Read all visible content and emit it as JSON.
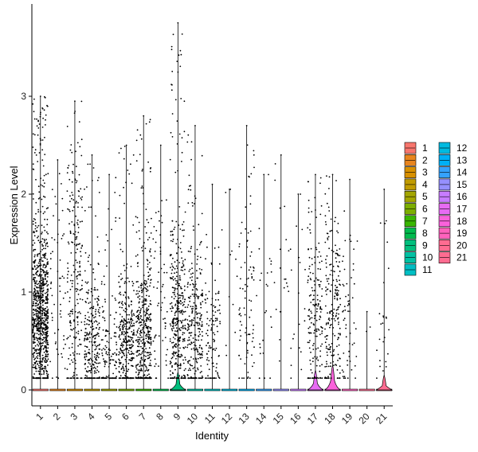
{
  "chart_data": {
    "type": "violin",
    "xlabel": "Identity",
    "ylabel": "Expression Level",
    "ylim": [
      -0.15,
      3.9
    ],
    "yticks": [
      0,
      1,
      2,
      3
    ],
    "grid": false,
    "legend_position": "right",
    "categories": [
      "1",
      "2",
      "3",
      "4",
      "5",
      "6",
      "7",
      "8",
      "9",
      "10",
      "11",
      "12",
      "13",
      "14",
      "15",
      "16",
      "17",
      "18",
      "19",
      "20",
      "21"
    ],
    "series": [
      {
        "name": "1",
        "color": "#F8766D",
        "max": 3.0,
        "points": 900,
        "median": 0.75,
        "spread": 0.42,
        "violin_peak": 0.0
      },
      {
        "name": "2",
        "color": "#E8851E",
        "max": 2.35,
        "points": 60,
        "median": 0.9,
        "spread": 0.6,
        "violin_peak": 0.0
      },
      {
        "name": "3",
        "color": "#D89000",
        "max": 2.95,
        "points": 220,
        "median": 1.1,
        "spread": 0.7,
        "violin_peak": 0.0
      },
      {
        "name": "4",
        "color": "#C09B00",
        "max": 2.4,
        "points": 260,
        "median": 0.45,
        "spread": 0.35,
        "violin_peak": 0.0
      },
      {
        "name": "5",
        "color": "#A3A500",
        "max": 2.2,
        "points": 130,
        "median": 0.35,
        "spread": 0.3,
        "violin_peak": 0.0
      },
      {
        "name": "6",
        "color": "#7CAE00",
        "max": 2.5,
        "points": 320,
        "median": 0.5,
        "spread": 0.35,
        "violin_peak": 0.0
      },
      {
        "name": "7",
        "color": "#39B600",
        "max": 2.8,
        "points": 420,
        "median": 0.55,
        "spread": 0.4,
        "violin_peak": 0.0
      },
      {
        "name": "8",
        "color": "#00BB4E",
        "max": 2.5,
        "points": 60,
        "median": 0.9,
        "spread": 0.6,
        "violin_peak": 0.0
      },
      {
        "name": "9",
        "color": "#00BF7D",
        "max": 3.75,
        "points": 380,
        "median": 0.65,
        "spread": 0.45,
        "violin_peak": 0.18
      },
      {
        "name": "10",
        "color": "#00C1A3",
        "max": 2.7,
        "points": 260,
        "median": 0.6,
        "spread": 0.4,
        "violin_peak": 0.0
      },
      {
        "name": "11",
        "color": "#00BFC4",
        "max": 2.1,
        "points": 110,
        "median": 0.55,
        "spread": 0.4,
        "violin_peak": 0.0
      },
      {
        "name": "12",
        "color": "#00BAE0",
        "max": 2.05,
        "points": 12,
        "median": 1.2,
        "spread": 0.6,
        "violin_peak": 0.0
      },
      {
        "name": "13",
        "color": "#00B0F6",
        "max": 2.7,
        "points": 90,
        "median": 0.7,
        "spread": 0.45,
        "violin_peak": 0.0
      },
      {
        "name": "14",
        "color": "#35A2FF",
        "max": 2.2,
        "points": 25,
        "median": 0.9,
        "spread": 0.6,
        "violin_peak": 0.0
      },
      {
        "name": "15",
        "color": "#9590FF",
        "max": 2.4,
        "points": 20,
        "median": 0.9,
        "spread": 0.6,
        "violin_peak": 0.0
      },
      {
        "name": "16",
        "color": "#C77CFF",
        "max": 2.0,
        "points": 20,
        "median": 0.7,
        "spread": 0.5,
        "violin_peak": 0.0
      },
      {
        "name": "17",
        "color": "#E76BF3",
        "max": 2.2,
        "points": 170,
        "median": 0.7,
        "spread": 0.5,
        "violin_peak": 0.2
      },
      {
        "name": "18",
        "color": "#FA62DB",
        "max": 2.2,
        "points": 210,
        "median": 0.75,
        "spread": 0.5,
        "violin_peak": 0.25
      },
      {
        "name": "19",
        "color": "#FF62BC",
        "max": 2.15,
        "points": 60,
        "median": 0.55,
        "spread": 0.4,
        "violin_peak": 0.0
      },
      {
        "name": "20",
        "color": "#FF6C91",
        "max": 0.8,
        "points": 2,
        "median": 0.5,
        "spread": 0.2,
        "violin_peak": 0.0
      },
      {
        "name": "21",
        "color": "#FF6C91",
        "max": 2.05,
        "points": 25,
        "median": 0.5,
        "spread": 0.35,
        "violin_peak": 0.15
      }
    ]
  }
}
